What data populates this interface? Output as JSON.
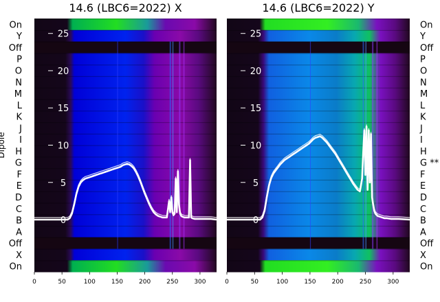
{
  "chart_data": [
    {
      "type": "heatmap",
      "title": "14.6 (LBC6=2022) X",
      "ylabel": "Dipole",
      "row_labels": [
        "On",
        "Y",
        "Off",
        "P",
        "O",
        "N",
        "M",
        "L",
        "K",
        "J",
        "I",
        "H",
        "G",
        "F",
        "E",
        "D",
        "C",
        "B",
        "A",
        "Off",
        "X",
        "On"
      ],
      "x_ticks": [
        0,
        50,
        100,
        150,
        200,
        250,
        300
      ],
      "xlim": [
        0,
        330
      ],
      "y_ticks": [
        0,
        5,
        10,
        15,
        20,
        25
      ],
      "ylim": [
        -7,
        27
      ],
      "overlay_line": {
        "x": [
          0,
          60,
          64,
          68,
          72,
          76,
          80,
          84,
          88,
          92,
          96,
          100,
          104,
          108,
          112,
          116,
          120,
          124,
          128,
          132,
          136,
          140,
          144,
          148,
          152,
          156,
          160,
          164,
          168,
          172,
          176,
          180,
          184,
          188,
          192,
          196,
          200,
          204,
          208,
          212,
          216,
          220,
          224,
          228,
          232,
          236,
          240,
          244,
          246,
          248,
          250,
          252,
          254,
          256,
          258,
          260,
          262,
          264,
          266,
          268,
          272,
          276,
          280,
          282,
          284,
          286,
          290,
          300,
          310,
          320,
          330
        ],
        "y": [
          0,
          0,
          0.2,
          0.8,
          2.0,
          3.4,
          4.4,
          5.0,
          5.3,
          5.5,
          5.6,
          5.7,
          5.8,
          5.9,
          6.0,
          6.1,
          6.2,
          6.3,
          6.4,
          6.5,
          6.6,
          6.7,
          6.8,
          6.9,
          7.0,
          7.1,
          7.3,
          7.4,
          7.5,
          7.4,
          7.2,
          6.9,
          6.4,
          5.8,
          5.1,
          4.3,
          3.5,
          2.8,
          2.1,
          1.5,
          1.0,
          0.7,
          0.5,
          0.4,
          0.3,
          0.3,
          0.3,
          2.5,
          1.0,
          3.0,
          1.0,
          0.6,
          0.8,
          5.5,
          1.0,
          6.5,
          2.0,
          0.8,
          0.5,
          0.4,
          0.3,
          0.3,
          0.3,
          8.0,
          0.3,
          0.2,
          0.1,
          0.1,
          0.1,
          0.1,
          0
        ]
      }
    },
    {
      "type": "heatmap",
      "title": "14.6 (LBC6=2022) Y",
      "row_labels": [
        "On",
        "Y",
        "Off",
        "P",
        "O",
        "N",
        "M",
        "L",
        "K",
        "J",
        "I",
        "H",
        "G **",
        "F",
        "E",
        "D",
        "C",
        "B",
        "A",
        "Off",
        "X",
        "On"
      ],
      "x_ticks": [
        0,
        50,
        100,
        150,
        200,
        250,
        300
      ],
      "xlim": [
        0,
        330
      ],
      "y_ticks": [
        0,
        5,
        10,
        15,
        20,
        25
      ],
      "ylim": [
        -7,
        27
      ],
      "overlay_line": {
        "x": [
          0,
          60,
          64,
          68,
          72,
          76,
          80,
          84,
          88,
          92,
          96,
          100,
          104,
          108,
          112,
          116,
          120,
          124,
          128,
          132,
          136,
          140,
          144,
          148,
          152,
          156,
          160,
          164,
          168,
          172,
          176,
          180,
          184,
          188,
          192,
          196,
          200,
          204,
          208,
          212,
          216,
          220,
          224,
          228,
          232,
          236,
          240,
          244,
          246,
          248,
          250,
          252,
          254,
          256,
          258,
          260,
          262,
          264,
          266,
          268,
          272,
          276,
          280,
          284,
          288,
          296,
          310,
          330
        ],
        "y": [
          0,
          0,
          0.3,
          1.2,
          3.0,
          4.6,
          5.6,
          6.2,
          6.6,
          7.0,
          7.4,
          7.7,
          8.0,
          8.2,
          8.4,
          8.6,
          8.8,
          9.0,
          9.2,
          9.4,
          9.6,
          9.8,
          10.0,
          10.2,
          10.5,
          10.8,
          11.0,
          11.1,
          11.2,
          11.0,
          10.7,
          10.4,
          10.0,
          9.6,
          9.2,
          8.8,
          8.3,
          7.8,
          7.3,
          6.8,
          6.3,
          5.8,
          5.3,
          4.8,
          4.4,
          4.0,
          3.8,
          5.5,
          9.0,
          12.0,
          6.0,
          12.5,
          4.0,
          12.0,
          5.0,
          11.5,
          3.0,
          2.0,
          1.2,
          0.8,
          0.5,
          0.4,
          0.3,
          0.2,
          0.2,
          0.1,
          0.1,
          0
        ]
      }
    }
  ]
}
